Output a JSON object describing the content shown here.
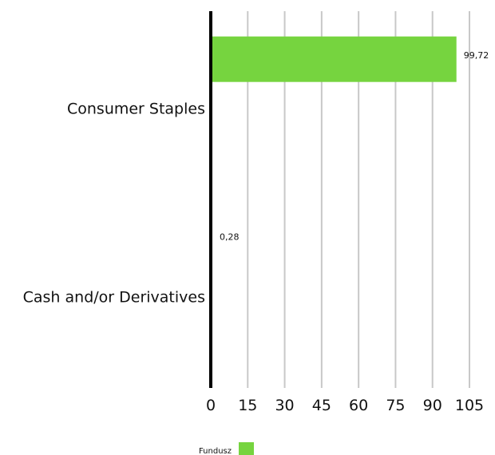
{
  "chart_data": {
    "type": "bar",
    "orientation": "horizontal",
    "categories": [
      "Consumer Staples",
      "Cash and/or Derivatives"
    ],
    "series": [
      {
        "name": "Fundusz",
        "values": [
          99.72,
          0.28
        ],
        "value_labels": [
          "99,72",
          "0,28"
        ],
        "color": "#76d43f"
      }
    ],
    "xlim": [
      0,
      105
    ],
    "xticks": [
      0,
      15,
      30,
      45,
      60,
      75,
      90,
      105
    ],
    "grid": true,
    "legend_position": "bottom-center",
    "title": "",
    "xlabel": "",
    "ylabel": ""
  },
  "colors": {
    "bar": "#76d43f",
    "axis": "#000000",
    "grid": "#c8c8c8",
    "text": "#111111"
  }
}
